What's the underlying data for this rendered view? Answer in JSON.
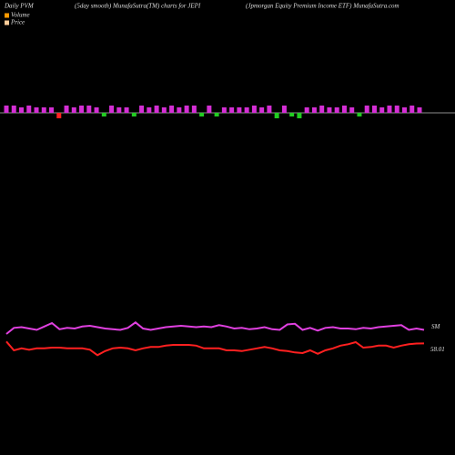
{
  "chart_data": [
    {
      "type": "bar",
      "title": "(5day smooth) MunafaSutra(TM) charts for JEPI",
      "subtitle": "(Jpmorgan Equity Premium Income ETF) MunafaSutra.com",
      "label": "Daily PVM",
      "legend": [
        {
          "name": "Volume",
          "color": "#ff9900"
        },
        {
          "name": "Price",
          "color": "#ffcc99"
        }
      ],
      "ylim": [
        -10,
        10
      ],
      "values": [
        4,
        4,
        3,
        4,
        3,
        3,
        3,
        -3,
        4,
        3,
        4,
        4,
        3,
        -2,
        4,
        3,
        3,
        -2,
        4,
        3,
        4,
        3,
        4,
        3,
        4,
        4,
        -2,
        4,
        -2,
        3,
        3,
        3,
        3,
        4,
        3,
        4,
        -3,
        4,
        -2,
        -3,
        3,
        3,
        4,
        3,
        3,
        4,
        3,
        -2,
        4,
        4,
        3,
        4,
        4,
        3,
        4,
        3
      ],
      "colors": [
        "#d42fd4",
        "#d42fd4",
        "#d42fd4",
        "#d42fd4",
        "#d42fd4",
        "#d42fd4",
        "#d42fd4",
        "#ff2222",
        "#d42fd4",
        "#d42fd4",
        "#d42fd4",
        "#d42fd4",
        "#d42fd4",
        "#22cc22",
        "#d42fd4",
        "#d42fd4",
        "#d42fd4",
        "#22cc22",
        "#d42fd4",
        "#d42fd4",
        "#d42fd4",
        "#d42fd4",
        "#d42fd4",
        "#d42fd4",
        "#d42fd4",
        "#d42fd4",
        "#22cc22",
        "#d42fd4",
        "#22cc22",
        "#d42fd4",
        "#d42fd4",
        "#d42fd4",
        "#d42fd4",
        "#d42fd4",
        "#d42fd4",
        "#d42fd4",
        "#22cc22",
        "#d42fd4",
        "#22cc22",
        "#22cc22",
        "#d42fd4",
        "#d42fd4",
        "#d42fd4",
        "#d42fd4",
        "#d42fd4",
        "#d42fd4",
        "#d42fd4",
        "#22cc22",
        "#d42fd4",
        "#d42fd4",
        "#d42fd4",
        "#d42fd4",
        "#d42fd4",
        "#d42fd4",
        "#d42fd4",
        "#d42fd4"
      ]
    },
    {
      "type": "line",
      "ylim": [
        55,
        63
      ],
      "series": [
        {
          "name": "SM",
          "color": "#e040e0",
          "values": [
            59.4,
            60.3,
            60.4,
            60.2,
            60.0,
            60.5,
            61.0,
            60.1,
            60.3,
            60.2,
            60.5,
            60.6,
            60.4,
            60.2,
            60.1,
            60.0,
            60.3,
            61.1,
            60.2,
            60.0,
            60.2,
            60.4,
            60.5,
            60.6,
            60.5,
            60.4,
            60.5,
            60.4,
            60.7,
            60.5,
            60.2,
            60.3,
            60.1,
            60.2,
            60.4,
            60.1,
            60.0,
            60.8,
            60.9,
            60.0,
            60.3,
            59.9,
            60.3,
            60.4,
            60.2,
            60.2,
            60.1,
            60.3,
            60.2,
            60.4,
            60.5,
            60.6,
            60.7,
            60.0,
            60.2,
            60.0
          ]
        },
        {
          "color": "#ff2020",
          "values": [
            58.3,
            57.0,
            57.3,
            57.1,
            57.3,
            57.3,
            57.4,
            57.4,
            57.3,
            57.3,
            57.3,
            57.1,
            56.3,
            56.9,
            57.3,
            57.4,
            57.3,
            57.0,
            57.3,
            57.5,
            57.5,
            57.7,
            57.8,
            57.8,
            57.8,
            57.7,
            57.3,
            57.3,
            57.3,
            57.0,
            57.0,
            56.9,
            57.1,
            57.3,
            57.5,
            57.3,
            57.0,
            56.9,
            56.7,
            56.6,
            57.0,
            56.5,
            57.0,
            57.3,
            57.7,
            57.9,
            58.2,
            57.4,
            57.5,
            57.7,
            57.7,
            57.4,
            57.7,
            57.9,
            58.0,
            58.01
          ]
        }
      ]
    }
  ]
}
